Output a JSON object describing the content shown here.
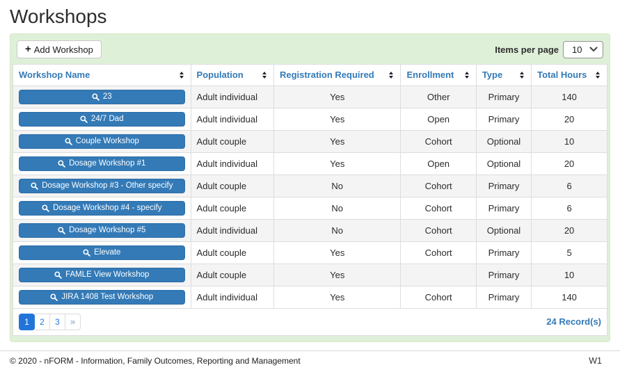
{
  "page": {
    "title": "Workshops"
  },
  "toolbar": {
    "add_button_label": "Add Workshop",
    "items_per_page_label": "Items per page",
    "items_per_page_value": "10"
  },
  "icons": {
    "plus_glyph": "+",
    "search_icon": "magnifier",
    "sort_icon": "up-down-carets",
    "chevron_down_icon": "chevron-down"
  },
  "table": {
    "columns": [
      "Workshop Name",
      "Population",
      "Registration Required",
      "Enrollment",
      "Type",
      "Total Hours"
    ],
    "rows": [
      {
        "name": "23",
        "population": "Adult individual",
        "registration_required": "Yes",
        "enrollment": "Other",
        "type": "Primary",
        "total_hours": "140"
      },
      {
        "name": "24/7 Dad",
        "population": "Adult individual",
        "registration_required": "Yes",
        "enrollment": "Open",
        "type": "Primary",
        "total_hours": "20"
      },
      {
        "name": "Couple Workshop",
        "population": "Adult couple",
        "registration_required": "Yes",
        "enrollment": "Cohort",
        "type": "Optional",
        "total_hours": "10"
      },
      {
        "name": "Dosage Workshop #1",
        "population": "Adult individual",
        "registration_required": "Yes",
        "enrollment": "Open",
        "type": "Optional",
        "total_hours": "20"
      },
      {
        "name": "Dosage Workshop #3 - Other specify",
        "population": "Adult couple",
        "registration_required": "No",
        "enrollment": "Cohort",
        "type": "Primary",
        "total_hours": "6"
      },
      {
        "name": "Dosage Workshop #4 - specify",
        "population": "Adult couple",
        "registration_required": "No",
        "enrollment": "Cohort",
        "type": "Primary",
        "total_hours": "6"
      },
      {
        "name": "Dosage Workshop #5",
        "population": "Adult individual",
        "registration_required": "No",
        "enrollment": "Cohort",
        "type": "Optional",
        "total_hours": "20"
      },
      {
        "name": "Elevate",
        "population": "Adult couple",
        "registration_required": "Yes",
        "enrollment": "Cohort",
        "type": "Primary",
        "total_hours": "5"
      },
      {
        "name": "FAMLE View Workshop",
        "population": "Adult couple",
        "registration_required": "Yes",
        "enrollment": "",
        "type": "Primary",
        "total_hours": "10"
      },
      {
        "name": "JIRA 1408 Test Workshop",
        "population": "Adult individual",
        "registration_required": "Yes",
        "enrollment": "Cohort",
        "type": "Primary",
        "total_hours": "140"
      }
    ]
  },
  "pagination": {
    "pages": [
      "1",
      "2",
      "3"
    ],
    "active_page": "1",
    "next_label": "»",
    "records_label": "24 Record(s)"
  },
  "footer": {
    "copyright": "© 2020 - nFORM - Information, Family Outcomes, Reporting and Management",
    "page_code": "W1"
  },
  "colors": {
    "accent_blue": "#337ab7",
    "button_border_blue": "#2e6da4",
    "active_page_blue": "#2175d9",
    "panel_green": "#dff0d8",
    "panel_border_green": "#d6e9c6",
    "row_stripe": "#f4f4f4",
    "table_border": "#dddddd"
  }
}
